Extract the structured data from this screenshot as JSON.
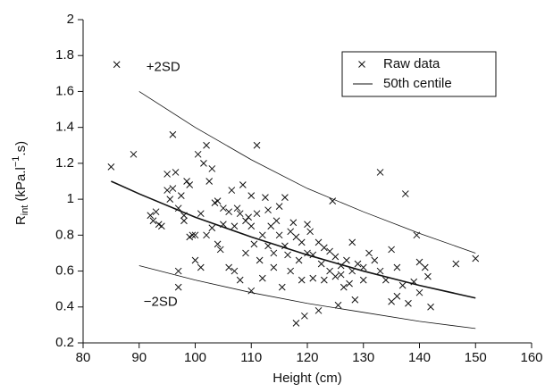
{
  "chart_data": {
    "type": "scatter",
    "xlabel": "Height (cm)",
    "ylabel_parts": [
      "R",
      "int",
      " (kPa.l",
      "−1",
      ".s)"
    ],
    "annotations": [
      "+2SD",
      "−2SD"
    ],
    "xlim": [
      80,
      160
    ],
    "xticks": [
      80,
      90,
      100,
      110,
      120,
      130,
      140,
      150,
      160
    ],
    "ylim": [
      0.2,
      2
    ],
    "yticks": [
      0.2,
      0.4,
      0.6,
      0.8,
      1,
      1.2,
      1.4,
      1.6,
      1.8,
      2
    ],
    "legend": "upper right",
    "series": [
      {
        "name": "Raw data",
        "mode": "markers",
        "color": "#111",
        "x": [
          85,
          86,
          89,
          92,
          92.5,
          93,
          93.5,
          94,
          95,
          95,
          95.5,
          96,
          96,
          96.5,
          97,
          97,
          97,
          97.5,
          98,
          98,
          98.5,
          99,
          99,
          99.5,
          100,
          100,
          100.5,
          101,
          101,
          101.5,
          102,
          102,
          102.5,
          103,
          103,
          103.5,
          104,
          104,
          104.5,
          105,
          105,
          106,
          106,
          106.5,
          107,
          107,
          107.5,
          108,
          108,
          108.5,
          109,
          109,
          109.5,
          110,
          110,
          110,
          110.5,
          111,
          111,
          111.5,
          112,
          112,
          112.5,
          113,
          113,
          113.5,
          114,
          114,
          114.5,
          115,
          115,
          115.5,
          116,
          116,
          116.5,
          117,
          117,
          117.5,
          118,
          118,
          118.5,
          119,
          119,
          119.5,
          120,
          120,
          120.5,
          121,
          121,
          122,
          122,
          122.5,
          123,
          123,
          124,
          124,
          124.5,
          125,
          125,
          125.5,
          126,
          126,
          126.5,
          127,
          127.5,
          128,
          128,
          128.5,
          129,
          130,
          130,
          131,
          132,
          133,
          133,
          134,
          135,
          135,
          136,
          136,
          137,
          137.5,
          138,
          139,
          139.5,
          140,
          140,
          141,
          141.5,
          142,
          146.5,
          150
        ],
        "values": [
          1.18,
          1.75,
          1.25,
          0.91,
          0.88,
          0.93,
          0.86,
          0.85,
          1.05,
          1.14,
          1.0,
          1.36,
          1.06,
          1.15,
          0.95,
          0.6,
          0.51,
          1.02,
          0.91,
          0.88,
          1.1,
          0.79,
          1.08,
          0.8,
          0.66,
          0.8,
          1.25,
          0.92,
          0.62,
          1.2,
          1.3,
          0.8,
          1.1,
          1.17,
          0.84,
          0.98,
          0.99,
          0.75,
          0.72,
          0.86,
          0.95,
          0.93,
          0.62,
          1.05,
          0.85,
          0.6,
          0.95,
          0.92,
          0.55,
          1.08,
          0.88,
          0.7,
          0.9,
          0.49,
          0.85,
          1.02,
          0.75,
          1.3,
          0.92,
          0.66,
          0.8,
          0.56,
          1.01,
          0.94,
          0.74,
          0.85,
          0.7,
          0.62,
          0.88,
          0.8,
          0.96,
          0.51,
          1.01,
          0.74,
          0.69,
          0.82,
          0.6,
          0.87,
          0.79,
          0.31,
          0.66,
          0.76,
          0.55,
          0.35,
          0.86,
          0.7,
          0.82,
          0.69,
          0.56,
          0.38,
          0.76,
          0.64,
          0.73,
          0.55,
          0.71,
          0.6,
          0.99,
          0.57,
          0.68,
          0.41,
          0.63,
          0.58,
          0.51,
          0.66,
          0.53,
          0.76,
          0.6,
          0.44,
          0.64,
          0.62,
          0.55,
          0.7,
          0.66,
          1.15,
          0.6,
          0.55,
          0.72,
          0.43,
          0.46,
          0.62,
          0.52,
          1.03,
          0.42,
          0.54,
          0.8,
          0.65,
          0.48,
          0.62,
          0.57,
          0.4,
          0.64,
          0.67
        ]
      },
      {
        "name": "50th centile",
        "mode": "line",
        "color": "#111",
        "width": 1.6,
        "x": [
          85,
          90,
          100,
          110,
          120,
          130,
          140,
          150
        ],
        "values": [
          1.1,
          1.03,
          0.9,
          0.79,
          0.69,
          0.6,
          0.52,
          0.45
        ]
      },
      {
        "mode": "line",
        "color": "#111",
        "width": 0.8,
        "x": [
          90,
          100,
          110,
          120,
          130,
          140,
          150
        ],
        "values": [
          1.6,
          1.4,
          1.22,
          1.06,
          0.93,
          0.81,
          0.7
        ]
      },
      {
        "mode": "line",
        "color": "#111",
        "width": 0.8,
        "x": [
          90,
          100,
          110,
          120,
          130,
          140,
          150
        ],
        "values": [
          0.63,
          0.55,
          0.48,
          0.42,
          0.37,
          0.32,
          0.28
        ]
      }
    ]
  }
}
